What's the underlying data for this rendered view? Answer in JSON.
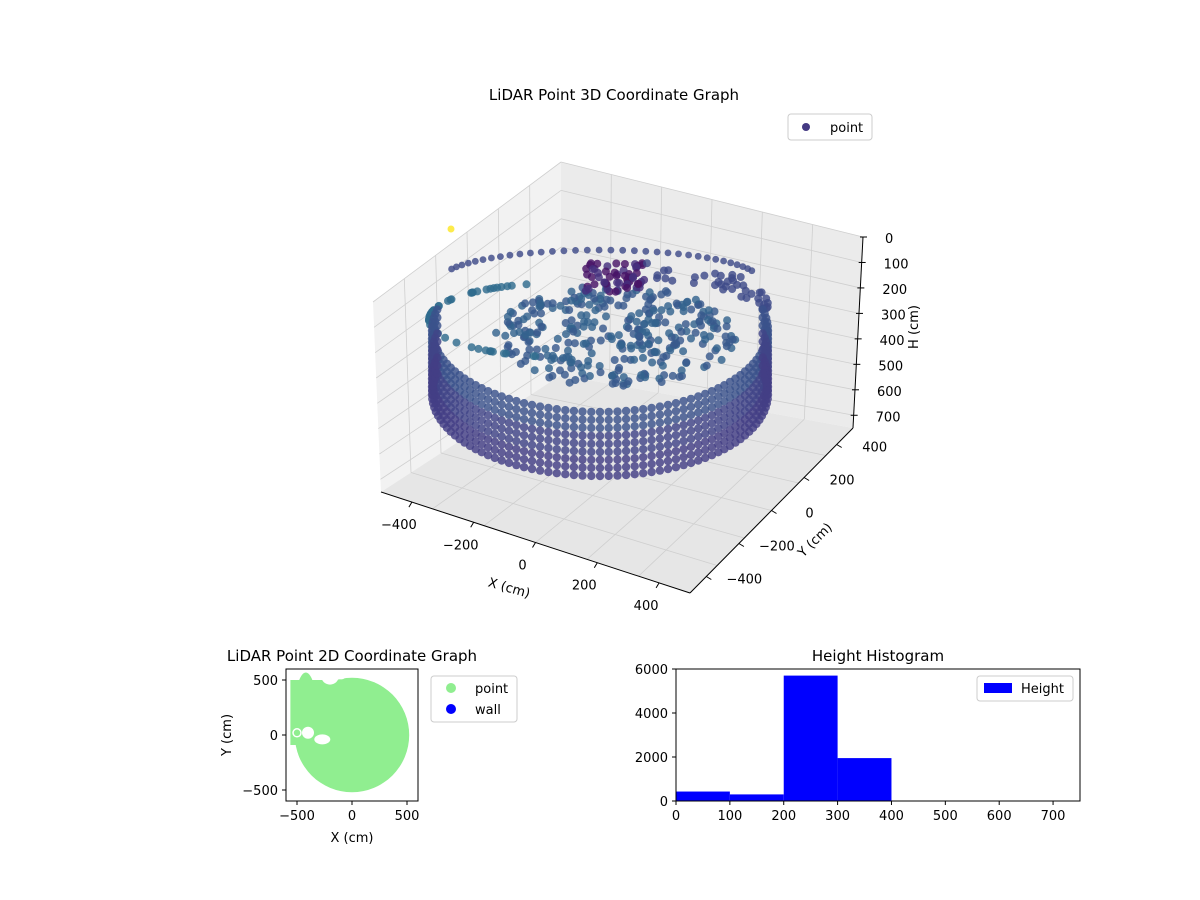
{
  "chart_data": [
    {
      "type": "scatter",
      "title": "LiDAR Point 3D Coordinate Graph",
      "xlabel": "X (cm)",
      "ylabel": "Y (cm)",
      "zlabel": "H (cm)",
      "xlim": [
        -500,
        500
      ],
      "ylim": [
        -500,
        500
      ],
      "zlim": [
        750,
        0
      ],
      "xticks": [
        "−400",
        "−200",
        "0",
        "200",
        "400"
      ],
      "yticks": [
        "−400",
        "−200",
        "0",
        "200",
        "400"
      ],
      "zticks": [
        "0",
        "100",
        "200",
        "300",
        "400",
        "500",
        "600",
        "700"
      ],
      "legend": {
        "entries": [
          "point"
        ],
        "placement": "top-right"
      },
      "colormap": "viridis",
      "grid": true
    },
    {
      "type": "scatter",
      "title": "LiDAR Point 2D Coordinate Graph",
      "xlabel": "X (cm)",
      "ylabel": "Y (cm)",
      "xlim": [
        -600,
        600
      ],
      "ylim": [
        -600,
        600
      ],
      "xticks": [
        "−500",
        "0",
        "500"
      ],
      "yticks": [
        "−500",
        "0",
        "500"
      ],
      "series": [
        {
          "name": "point",
          "color": "#90ee90"
        },
        {
          "name": "wall",
          "color": "#0000ff"
        }
      ],
      "legend": {
        "placement": "outside-right"
      }
    },
    {
      "type": "bar",
      "title": "Height Histogram",
      "bin_edges": [
        0,
        100,
        200,
        300,
        400,
        500,
        600,
        700,
        750
      ],
      "values": [
        430,
        300,
        5700,
        1950,
        0,
        0,
        0,
        0
      ],
      "xticks": [
        "0",
        "100",
        "200",
        "300",
        "400",
        "500",
        "600",
        "700"
      ],
      "yticks": [
        "0",
        "2000",
        "4000",
        "6000"
      ],
      "xlim": [
        0,
        750
      ],
      "ylim": [
        0,
        6000
      ],
      "series": [
        {
          "name": "Height",
          "color": "#0000ff"
        }
      ],
      "legend": {
        "placement": "top-right"
      }
    }
  ]
}
